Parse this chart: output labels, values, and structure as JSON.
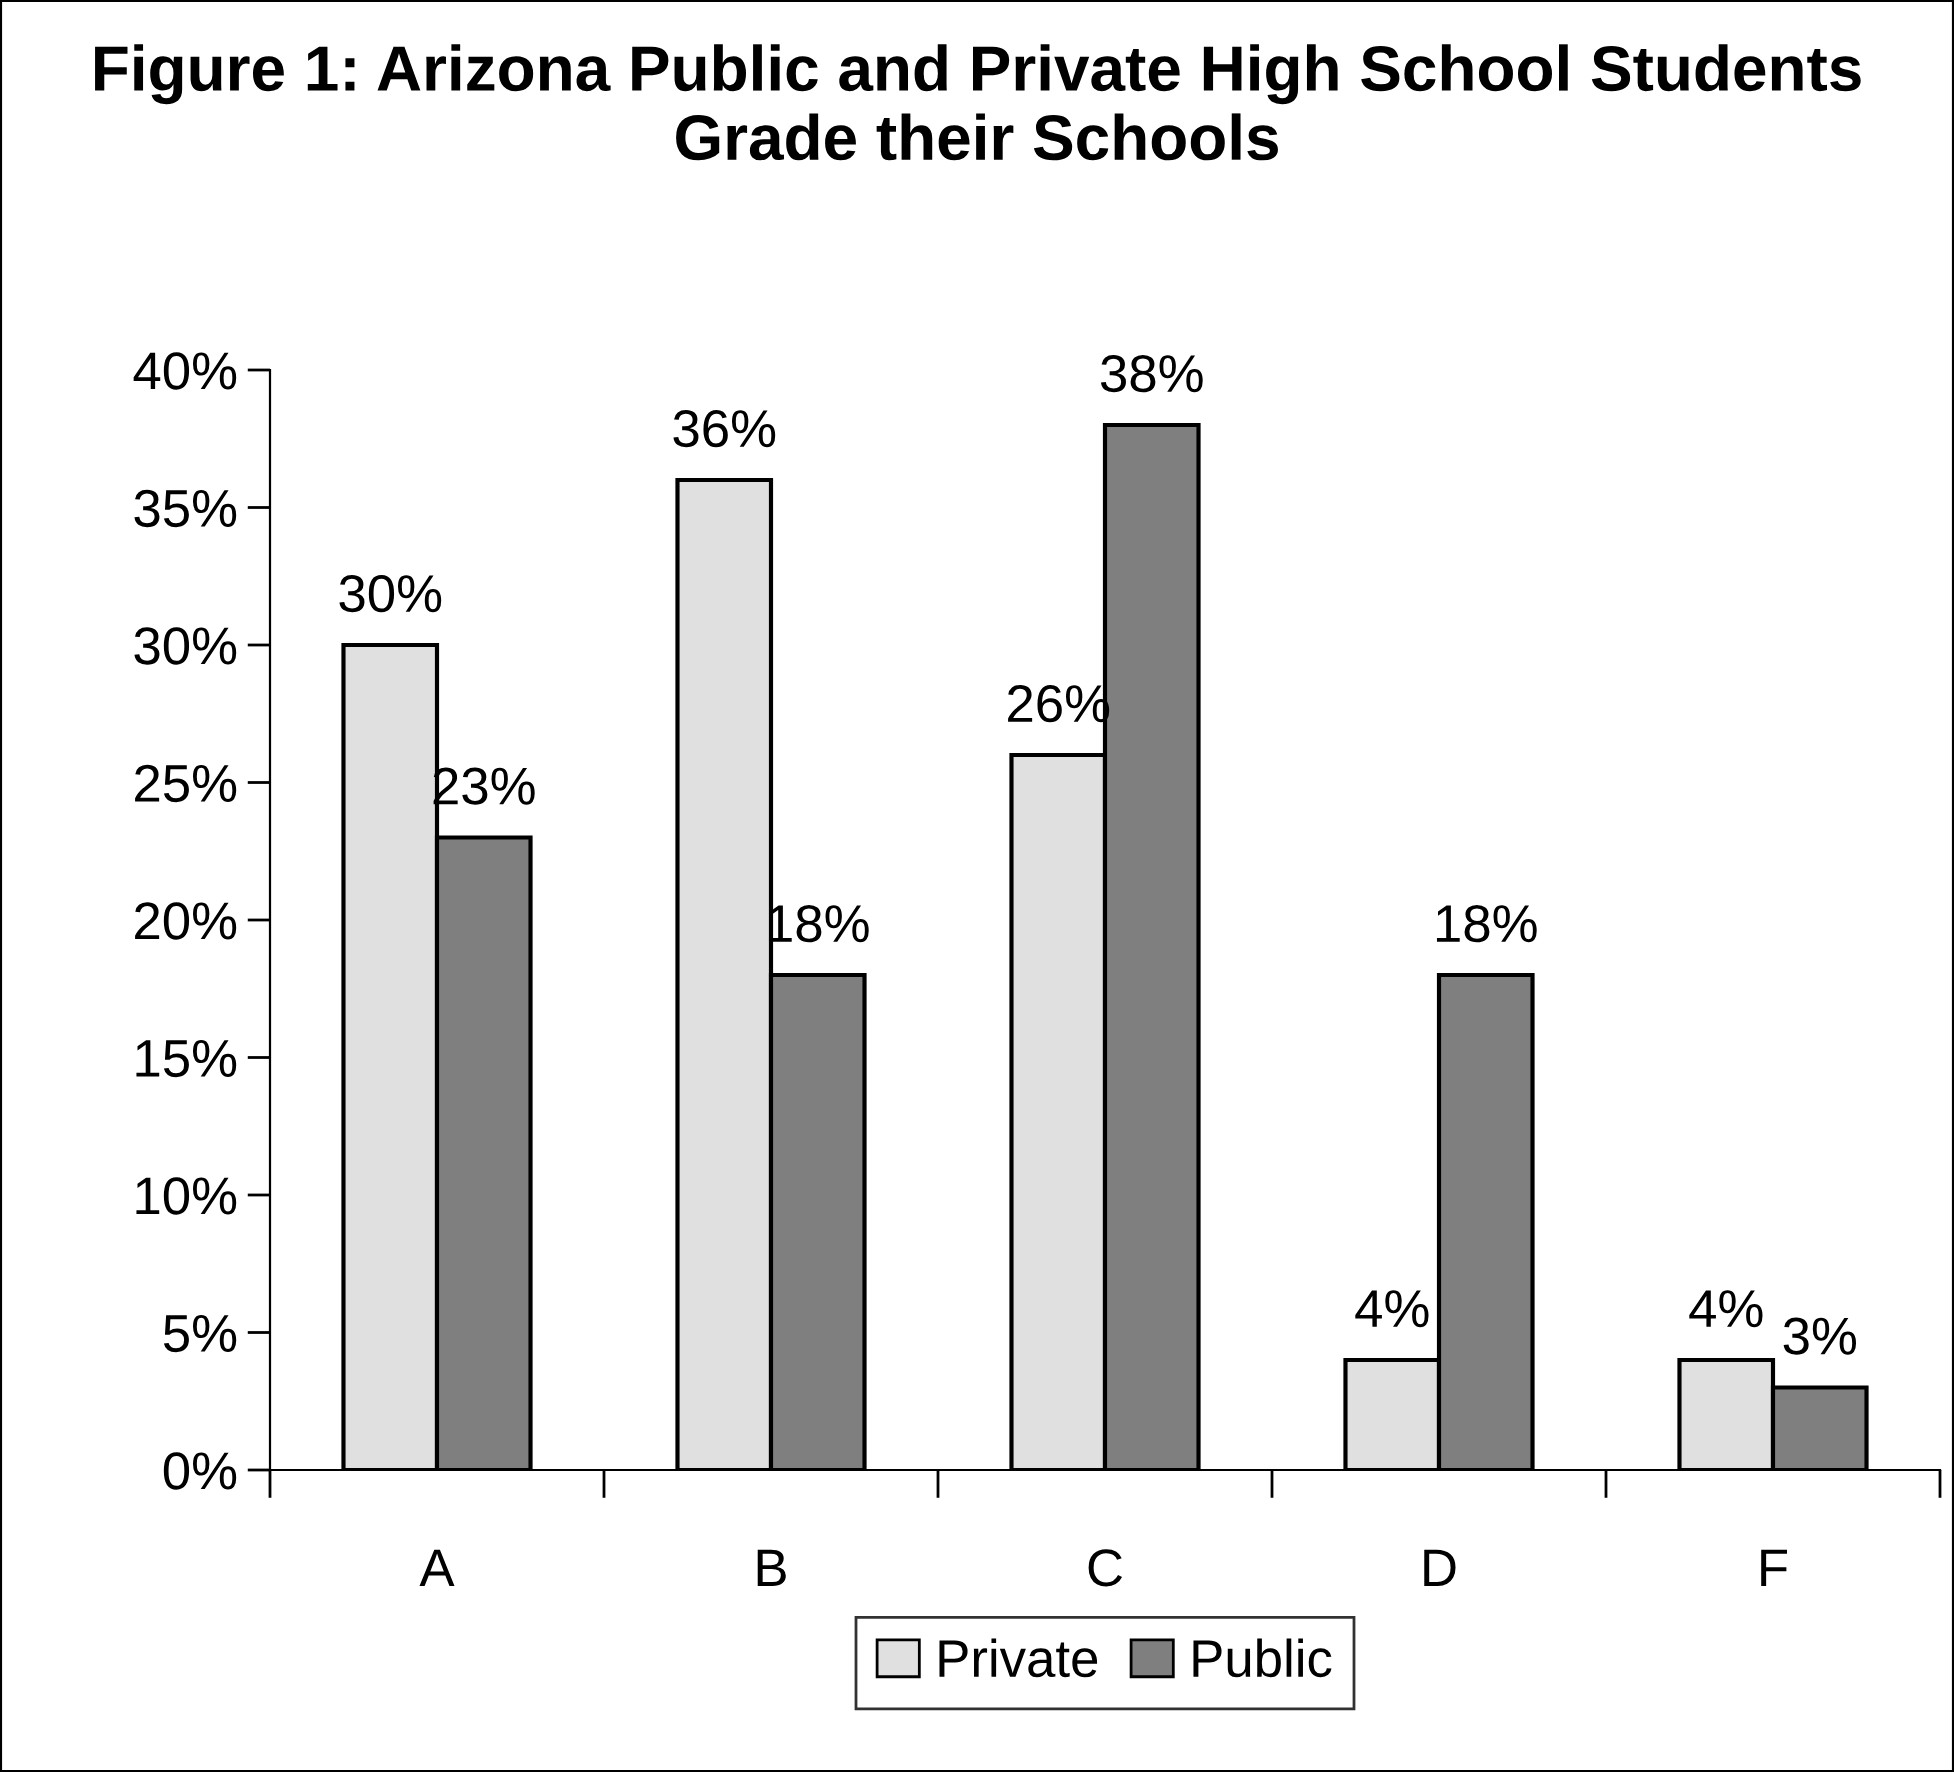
{
  "chart_data": {
    "type": "bar",
    "title": "Figure 1: Arizona Public and Private High School Students Grade their Schools",
    "categories": [
      "A",
      "B",
      "C",
      "D",
      "F"
    ],
    "series": [
      {
        "name": "Private",
        "color": "#e0e0e0",
        "values": [
          30,
          36,
          26,
          4,
          4
        ],
        "value_labels": [
          "30%",
          "36%",
          "26%",
          "4%",
          "4%"
        ]
      },
      {
        "name": "Public",
        "color": "#7f7f7f",
        "values": [
          23,
          18,
          38,
          18,
          3
        ],
        "value_labels": [
          "23%",
          "18%",
          "38%",
          "18%",
          "3%"
        ]
      }
    ],
    "ylim": [
      0,
      40
    ],
    "yticks": [
      {
        "value": 0,
        "label": "0%"
      },
      {
        "value": 5,
        "label": "5%"
      },
      {
        "value": 10,
        "label": "10%"
      },
      {
        "value": 15,
        "label": "15%"
      },
      {
        "value": 20,
        "label": "20%"
      },
      {
        "value": 25,
        "label": "25%"
      },
      {
        "value": 30,
        "label": "30%"
      },
      {
        "value": 35,
        "label": "35%"
      },
      {
        "value": 40,
        "label": "40%"
      }
    ],
    "grid": false,
    "legend": "bottom"
  }
}
